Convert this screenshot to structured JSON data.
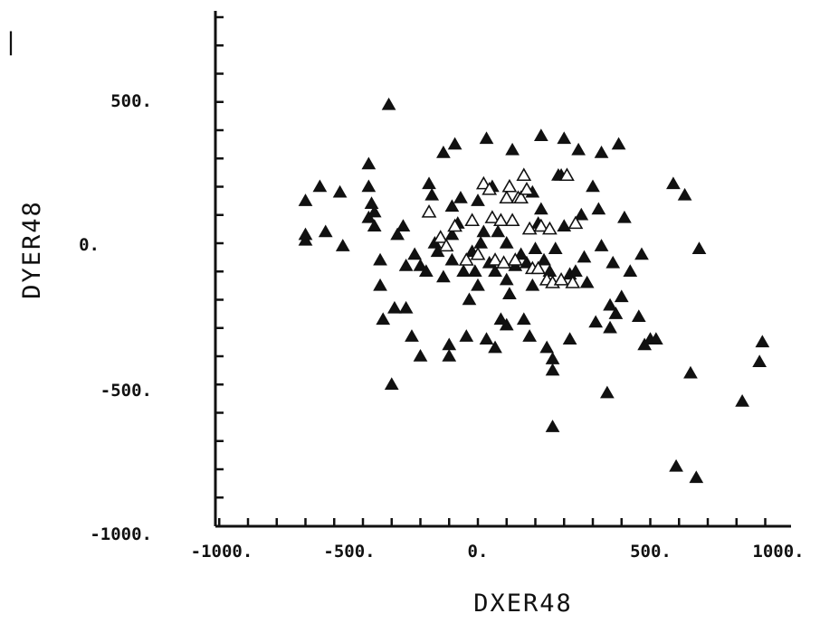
{
  "chart_data": {
    "type": "scatter",
    "xlabel": "DXER48",
    "ylabel": "DYER48",
    "xlim": [
      -1000,
      1000
    ],
    "ylim": [
      -1000,
      1000
    ],
    "x_tick_labels": [
      "-1000.",
      "-500.",
      "0.",
      "500.",
      "1000."
    ],
    "y_tick_labels": [
      "500.",
      "0.",
      "-500.",
      "-1000."
    ],
    "grid": false,
    "marker": "triangle",
    "series": [
      {
        "points": [
          [
            -600,
            150
          ],
          [
            -600,
            10
          ],
          [
            -600,
            30
          ],
          [
            -550,
            200
          ],
          [
            -530,
            40
          ],
          [
            -480,
            180
          ],
          [
            -470,
            -10
          ],
          [
            -380,
            280
          ],
          [
            -380,
            90
          ],
          [
            -380,
            200
          ],
          [
            -370,
            140
          ],
          [
            -360,
            110
          ],
          [
            -360,
            60
          ],
          [
            -340,
            -60
          ],
          [
            -340,
            -150
          ],
          [
            -330,
            -270
          ],
          [
            -310,
            490
          ],
          [
            -300,
            -500
          ],
          [
            -290,
            -230
          ],
          [
            -280,
            30
          ],
          [
            -260,
            60
          ],
          [
            -250,
            -80
          ],
          [
            -250,
            -230
          ],
          [
            -230,
            -330
          ],
          [
            -220,
            -40
          ],
          [
            -200,
            -80
          ],
          [
            -200,
            -400
          ],
          [
            -180,
            -100
          ],
          [
            -170,
            210
          ],
          [
            -160,
            170
          ],
          [
            -150,
            0
          ],
          [
            -140,
            -30
          ],
          [
            -120,
            -120
          ],
          [
            -120,
            320
          ],
          [
            -100,
            -360
          ],
          [
            -100,
            -400
          ],
          [
            -90,
            -60
          ],
          [
            -90,
            30
          ],
          [
            -90,
            130
          ],
          [
            -80,
            350
          ],
          [
            -70,
            70
          ],
          [
            -60,
            160
          ],
          [
            -50,
            -100
          ],
          [
            -40,
            -330
          ],
          [
            -30,
            -200
          ],
          [
            -20,
            -30
          ],
          [
            -10,
            -100
          ],
          [
            0,
            -150
          ],
          [
            0,
            150
          ],
          [
            10,
            0
          ],
          [
            20,
            40
          ],
          [
            30,
            370
          ],
          [
            30,
            -340
          ],
          [
            40,
            -70
          ],
          [
            50,
            200
          ],
          [
            60,
            -100
          ],
          [
            60,
            -370
          ],
          [
            70,
            40
          ],
          [
            80,
            -270
          ],
          [
            100,
            -290
          ],
          [
            100,
            -130
          ],
          [
            100,
            0
          ],
          [
            110,
            -180
          ],
          [
            120,
            330
          ],
          [
            130,
            -80
          ],
          [
            150,
            -40
          ],
          [
            160,
            -270
          ],
          [
            170,
            -70
          ],
          [
            180,
            -330
          ],
          [
            190,
            -150
          ],
          [
            190,
            180
          ],
          [
            200,
            -20
          ],
          [
            210,
            70
          ],
          [
            220,
            380
          ],
          [
            220,
            120
          ],
          [
            230,
            -60
          ],
          [
            240,
            -370
          ],
          [
            250,
            -100
          ],
          [
            260,
            -410
          ],
          [
            260,
            -450
          ],
          [
            260,
            -650
          ],
          [
            270,
            -20
          ],
          [
            280,
            240
          ],
          [
            290,
            240
          ],
          [
            300,
            370
          ],
          [
            300,
            60
          ],
          [
            320,
            -110
          ],
          [
            320,
            -340
          ],
          [
            340,
            -100
          ],
          [
            350,
            330
          ],
          [
            360,
            100
          ],
          [
            370,
            -50
          ],
          [
            380,
            -140
          ],
          [
            400,
            200
          ],
          [
            410,
            -280
          ],
          [
            420,
            120
          ],
          [
            430,
            320
          ],
          [
            430,
            -10
          ],
          [
            450,
            -530
          ],
          [
            460,
            -220
          ],
          [
            460,
            -300
          ],
          [
            470,
            -70
          ],
          [
            480,
            -250
          ],
          [
            490,
            350
          ],
          [
            500,
            -190
          ],
          [
            510,
            90
          ],
          [
            530,
            -100
          ],
          [
            560,
            -260
          ],
          [
            570,
            -40
          ],
          [
            580,
            -360
          ],
          [
            600,
            -340
          ],
          [
            620,
            -340
          ],
          [
            680,
            210
          ],
          [
            690,
            -790
          ],
          [
            720,
            170
          ],
          [
            740,
            -460
          ],
          [
            760,
            -830
          ],
          [
            770,
            -20
          ],
          [
            920,
            -560
          ],
          [
            980,
            -420
          ],
          [
            990,
            -350
          ]
        ]
      },
      {
        "points": [
          [
            -170,
            110
          ],
          [
            -130,
            20
          ],
          [
            -110,
            -10
          ],
          [
            -80,
            60
          ],
          [
            -40,
            -60
          ],
          [
            -20,
            80
          ],
          [
            0,
            -40
          ],
          [
            20,
            210
          ],
          [
            40,
            190
          ],
          [
            50,
            90
          ],
          [
            60,
            -60
          ],
          [
            80,
            80
          ],
          [
            90,
            -70
          ],
          [
            100,
            160
          ],
          [
            110,
            200
          ],
          [
            120,
            80
          ],
          [
            130,
            -60
          ],
          [
            140,
            160
          ],
          [
            150,
            160
          ],
          [
            160,
            240
          ],
          [
            170,
            190
          ],
          [
            180,
            50
          ],
          [
            190,
            -90
          ],
          [
            210,
            -90
          ],
          [
            220,
            60
          ],
          [
            240,
            -130
          ],
          [
            250,
            50
          ],
          [
            260,
            -140
          ],
          [
            290,
            -130
          ],
          [
            310,
            240
          ],
          [
            330,
            -140
          ],
          [
            340,
            70
          ]
        ]
      }
    ]
  },
  "stray_marks": [
    "|"
  ]
}
